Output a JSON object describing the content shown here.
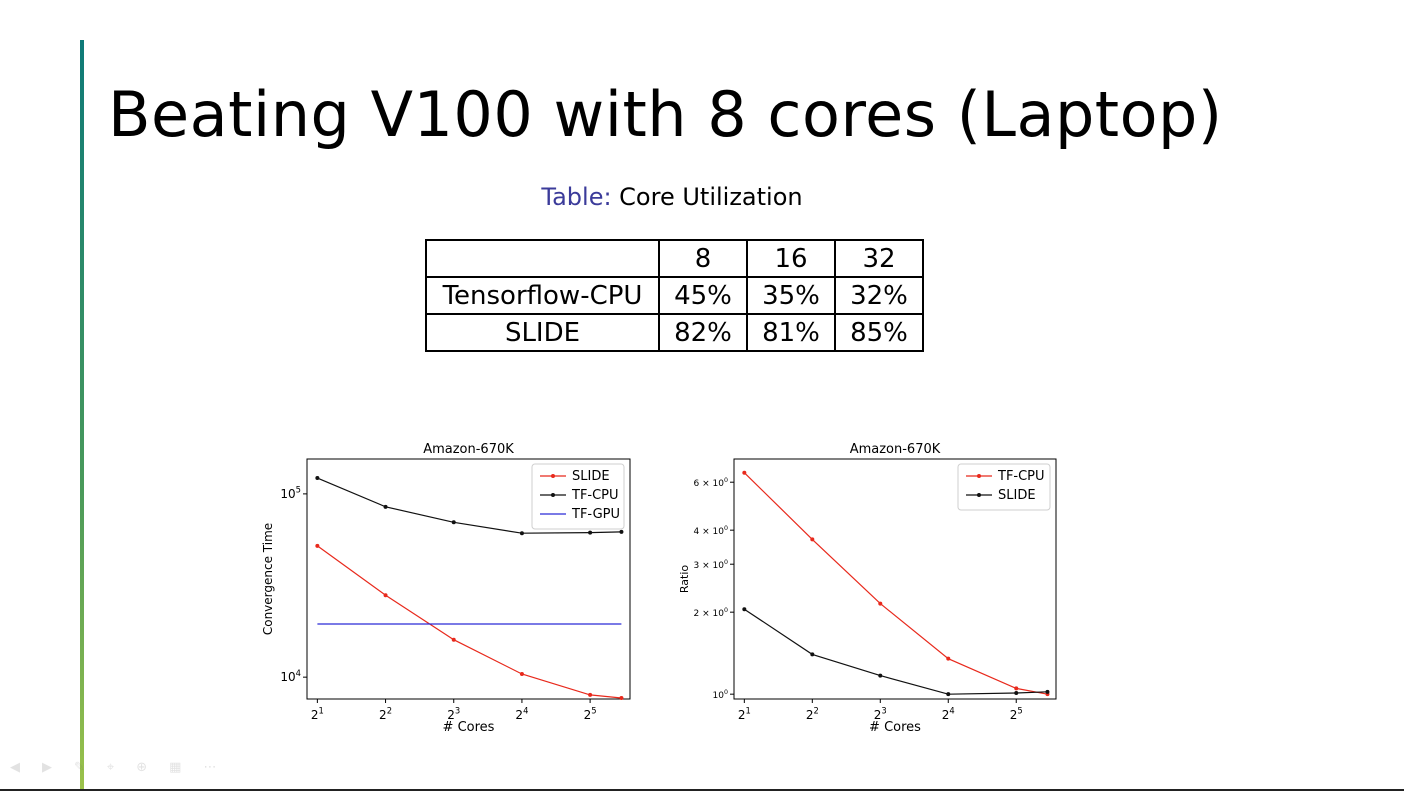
{
  "slide": {
    "title": "Beating V100 with 8 cores (Laptop)",
    "table_caption_label": "Table:",
    "table_caption_text": " Core Utilization"
  },
  "table": {
    "header": [
      "",
      "8",
      "16",
      "32"
    ],
    "rows": [
      {
        "name": "Tensorflow-CPU",
        "values": [
          "45%",
          "35%",
          "32%"
        ]
      },
      {
        "name": "SLIDE",
        "values": [
          "82%",
          "81%",
          "85%"
        ]
      }
    ]
  },
  "toolbar_icons": [
    "prev-icon",
    "next-icon",
    "pen-icon",
    "pointer-icon",
    "zoom-icon",
    "grid-icon",
    "more-icon"
  ],
  "chart_data": [
    {
      "type": "line",
      "title": "Amazon-670K",
      "xlabel": "# Cores",
      "ylabel": "Convergence Time",
      "xscale": "log2",
      "yscale": "log10",
      "xlim": [
        1.8,
        48
      ],
      "ylim": [
        7600,
        155000
      ],
      "xticks": [
        2,
        4,
        8,
        16,
        32
      ],
      "xtick_labels": [
        [
          "2",
          "1"
        ],
        [
          "2",
          "2"
        ],
        [
          "2",
          "3"
        ],
        [
          "2",
          "4"
        ],
        [
          "2",
          "5"
        ]
      ],
      "yticks": [
        10000,
        100000
      ],
      "ytick_labels": [
        [
          "10",
          "4"
        ],
        [
          "10",
          "5"
        ]
      ],
      "legend_position": "top-right",
      "grid": false,
      "series": [
        {
          "name": "SLIDE",
          "color": "#e8291c",
          "marker": "dot",
          "x": [
            2,
            4,
            8,
            16,
            32,
            44
          ],
          "y": [
            52000,
            28000,
            16000,
            10400,
            8000,
            7700
          ]
        },
        {
          "name": "TF-CPU",
          "color": "#111111",
          "marker": "dot",
          "x": [
            2,
            4,
            8,
            16,
            32,
            44
          ],
          "y": [
            122000,
            85000,
            70000,
            61000,
            61500,
            62000
          ]
        },
        {
          "name": "TF-GPU",
          "color": "#2a2ad6",
          "marker": "none",
          "x": [
            2,
            44
          ],
          "y": [
            19500,
            19500
          ]
        }
      ]
    },
    {
      "type": "line",
      "title": "Amazon-670K",
      "xlabel": "# Cores",
      "ylabel": "Ratio",
      "xscale": "log2",
      "yscale": "log10",
      "xlim": [
        1.8,
        48
      ],
      "ylim": [
        0.96,
        7.3
      ],
      "xticks": [
        2,
        4,
        8,
        16,
        32
      ],
      "xtick_labels": [
        [
          "2",
          "1"
        ],
        [
          "2",
          "2"
        ],
        [
          "2",
          "3"
        ],
        [
          "2",
          "4"
        ],
        [
          "2",
          "5"
        ]
      ],
      "yticks": [
        1,
        2,
        3,
        4,
        6
      ],
      "ytick_labels": [
        [
          "10",
          "0"
        ],
        [
          "2 × 10",
          "0"
        ],
        [
          "3 × 10",
          "0"
        ],
        [
          "4 × 10",
          "0"
        ],
        [
          "6 × 10",
          "0"
        ]
      ],
      "legend_position": "top-right",
      "grid": false,
      "series": [
        {
          "name": "TF-CPU",
          "color": "#e8291c",
          "marker": "dot",
          "x": [
            2,
            4,
            8,
            16,
            32,
            44
          ],
          "y": [
            6.5,
            3.7,
            2.15,
            1.35,
            1.05,
            1.0
          ]
        },
        {
          "name": "SLIDE",
          "color": "#111111",
          "marker": "dot",
          "x": [
            2,
            4,
            8,
            16,
            32,
            44
          ],
          "y": [
            2.05,
            1.4,
            1.17,
            1.0,
            1.01,
            1.02
          ]
        }
      ]
    }
  ]
}
